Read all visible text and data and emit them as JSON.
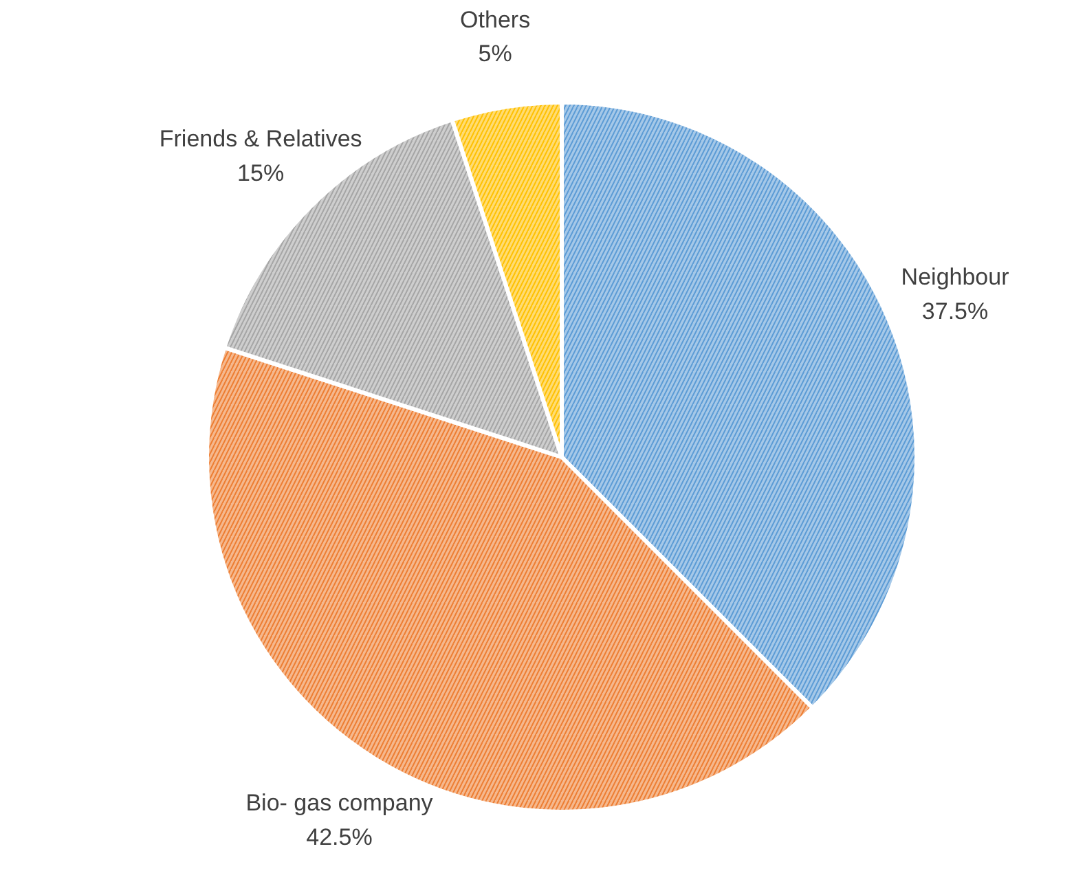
{
  "chart_data": {
    "type": "pie",
    "categories": [
      "Neighbour",
      "Bio- gas company",
      "Friends & Relatives",
      "Others"
    ],
    "values": [
      37.5,
      42.5,
      15,
      5
    ],
    "value_labels": [
      "37.5%",
      "42.5%",
      "15%",
      "5%"
    ],
    "colors": [
      "#5b9bd5",
      "#ed7d31",
      "#a5a5a5",
      "#ffc000"
    ]
  }
}
